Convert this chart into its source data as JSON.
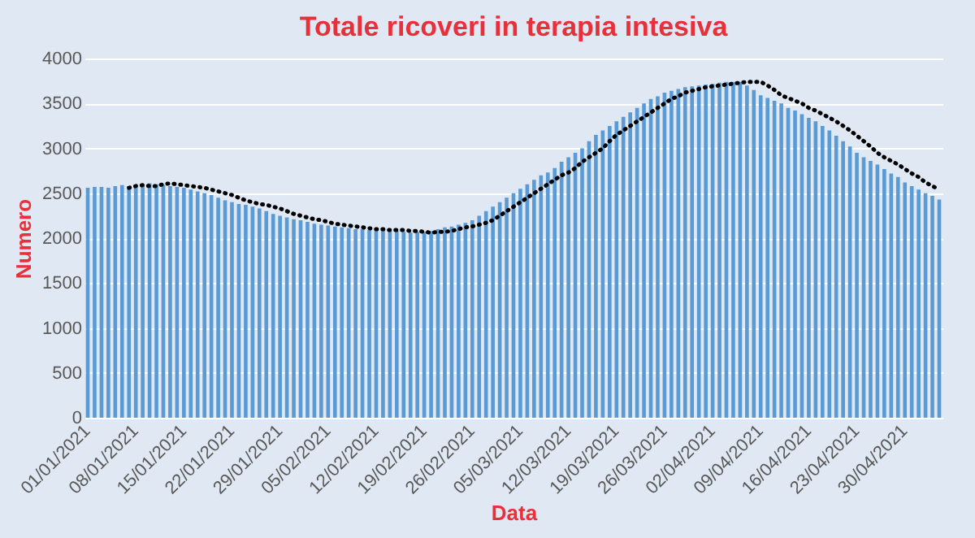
{
  "chart_data": {
    "type": "bar",
    "title": "Totale ricoveri in terapia intesiva",
    "xlabel": "Data",
    "ylabel": "Numero",
    "categories": [
      "01/01/2021",
      null,
      null,
      null,
      null,
      null,
      null,
      "08/01/2021",
      null,
      null,
      null,
      null,
      null,
      null,
      "15/01/2021",
      null,
      null,
      null,
      null,
      null,
      null,
      "22/01/2021",
      null,
      null,
      null,
      null,
      null,
      null,
      "29/01/2021",
      null,
      null,
      null,
      null,
      null,
      null,
      "05/02/2021",
      null,
      null,
      null,
      null,
      null,
      null,
      "12/02/2021",
      null,
      null,
      null,
      null,
      null,
      null,
      "19/02/2021",
      null,
      null,
      null,
      null,
      null,
      null,
      "26/02/2021",
      null,
      null,
      null,
      null,
      null,
      null,
      "05/03/2021",
      null,
      null,
      null,
      null,
      null,
      null,
      "12/03/2021",
      null,
      null,
      null,
      null,
      null,
      null,
      "19/03/2021",
      null,
      null,
      null,
      null,
      null,
      null,
      "26/03/2021",
      null,
      null,
      null,
      null,
      null,
      null,
      "02/04/2021",
      null,
      null,
      null,
      null,
      null,
      null,
      "09/04/2021",
      null,
      null,
      null,
      null,
      null,
      null,
      "16/04/2021",
      null,
      null,
      null,
      null,
      null,
      null,
      "23/04/2021",
      null,
      null,
      null,
      null,
      null,
      null,
      "30/04/2021",
      null,
      null,
      null,
      null,
      null
    ],
    "series": [
      {
        "color": "#5b9bd5",
        "values": [
          2560,
          2570,
          2570,
          2560,
          2580,
          2590,
          2580,
          2580,
          2600,
          2610,
          2600,
          2590,
          2580,
          2570,
          2560,
          2540,
          2520,
          2500,
          2480,
          2450,
          2420,
          2400,
          2380,
          2370,
          2350,
          2330,
          2300,
          2270,
          2250,
          2230,
          2210,
          2200,
          2180,
          2160,
          2150,
          2140,
          2130,
          2120,
          2110,
          2100,
          2100,
          2090,
          2090,
          2090,
          2080,
          2080,
          2070,
          2060,
          2070,
          2070,
          2080,
          2100,
          2120,
          2130,
          2150,
          2170,
          2200,
          2250,
          2300,
          2350,
          2400,
          2450,
          2500,
          2550,
          2600,
          2650,
          2700,
          2730,
          2780,
          2850,
          2900,
          2950,
          3000,
          3080,
          3150,
          3200,
          3250,
          3300,
          3350,
          3400,
          3450,
          3500,
          3550,
          3580,
          3620,
          3640,
          3660,
          3680,
          3690,
          3700,
          3710,
          3720,
          3730,
          3740,
          3740,
          3740,
          3700,
          3650,
          3590,
          3560,
          3530,
          3500,
          3450,
          3420,
          3380,
          3340,
          3300,
          3250,
          3200,
          3140,
          3080,
          3020,
          2950,
          2900,
          2860,
          2820,
          2770,
          2720,
          2680,
          2620,
          2580,
          2540,
          2500,
          2470,
          2430
        ]
      },
      {
        "type": "line",
        "color": "#000000",
        "line_style": "dotted",
        "values": [
          null,
          null,
          null,
          null,
          null,
          null,
          2560,
          2580,
          2590,
          2580,
          2580,
          2600,
          2610,
          2600,
          2590,
          2580,
          2570,
          2560,
          2540,
          2520,
          2500,
          2480,
          2450,
          2420,
          2400,
          2380,
          2370,
          2350,
          2330,
          2300,
          2270,
          2250,
          2230,
          2210,
          2200,
          2180,
          2160,
          2150,
          2140,
          2130,
          2120,
          2110,
          2100,
          2100,
          2090,
          2090,
          2090,
          2080,
          2080,
          2070,
          2060,
          2070,
          2070,
          2080,
          2100,
          2120,
          2130,
          2150,
          2170,
          2200,
          2250,
          2300,
          2350,
          2400,
          2450,
          2500,
          2550,
          2600,
          2650,
          2700,
          2730,
          2780,
          2850,
          2900,
          2950,
          3000,
          3080,
          3150,
          3200,
          3250,
          3300,
          3350,
          3400,
          3450,
          3500,
          3550,
          3580,
          3620,
          3640,
          3660,
          3680,
          3690,
          3700,
          3710,
          3720,
          3730,
          3740,
          3740,
          3740,
          3700,
          3650,
          3590,
          3560,
          3530,
          3500,
          3450,
          3420,
          3380,
          3340,
          3300,
          3250,
          3200,
          3140,
          3080,
          3020,
          2950,
          2900,
          2860,
          2820,
          2770,
          2720,
          2680,
          2620,
          2580,
          2540
        ]
      }
    ],
    "ylim": [
      0,
      4000
    ],
    "yticks": [
      0,
      500,
      1000,
      1500,
      2000,
      2500,
      3000,
      3500,
      4000
    ],
    "grid": "y"
  }
}
